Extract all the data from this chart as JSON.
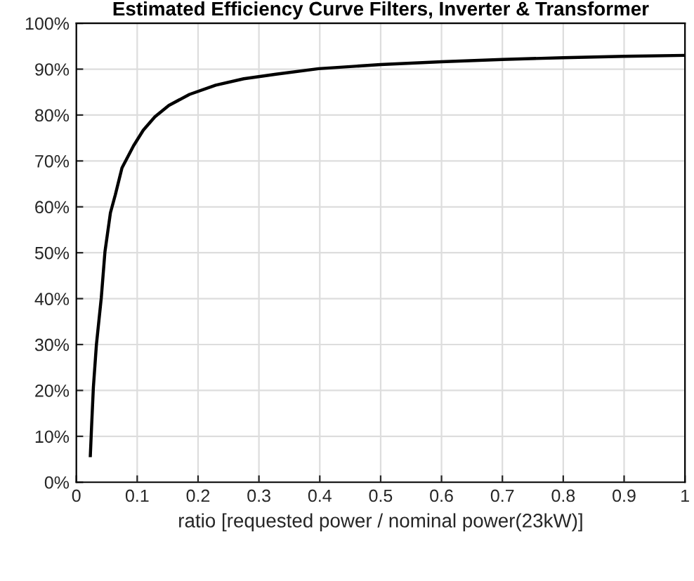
{
  "chart_data": {
    "type": "line",
    "title": "Estimated Efficiency Curve Filters, Inverter & Transformer",
    "xlabel": "ratio [requested power / nominal power(23kW)]",
    "x": [
      0.023,
      0.025,
      0.028,
      0.033,
      0.041,
      0.047,
      0.056,
      0.064,
      0.075,
      0.094,
      0.11,
      0.129,
      0.152,
      0.186,
      0.229,
      0.275,
      0.328,
      0.398,
      0.5,
      0.6,
      0.7,
      0.8,
      0.9,
      1.0
    ],
    "series": [
      {
        "color": "#000000",
        "values": [
          5.8,
          12,
          20.7,
          30,
          40.2,
          50.2,
          58.7,
          62.6,
          68.5,
          73.3,
          76.7,
          79.6,
          82.1,
          84.5,
          86.5,
          87.9,
          88.9,
          90.1,
          91.0,
          91.6,
          92.1,
          92.5,
          92.8,
          93.0
        ]
      }
    ],
    "xlim": [
      0,
      1
    ],
    "xticks": [
      0,
      0.1,
      0.2,
      0.3,
      0.4,
      0.5,
      0.6,
      0.7,
      0.8,
      0.9,
      1
    ],
    "ylim": [
      0,
      100
    ],
    "yticks": [
      {
        "value": 0,
        "label": "0%"
      },
      {
        "value": 10,
        "label": "10%"
      },
      {
        "value": 20,
        "label": "20%"
      },
      {
        "value": 30,
        "label": "30%"
      },
      {
        "value": 40,
        "label": "40%"
      },
      {
        "value": 50,
        "label": "50%"
      },
      {
        "value": 60,
        "label": "60%"
      },
      {
        "value": 70,
        "label": "70%"
      },
      {
        "value": 80,
        "label": "80%"
      },
      {
        "value": 90,
        "label": "90%"
      },
      {
        "value": 100,
        "label": "100%"
      }
    ],
    "grid": true,
    "legend": false,
    "marker": "none",
    "line_style": "solid"
  }
}
